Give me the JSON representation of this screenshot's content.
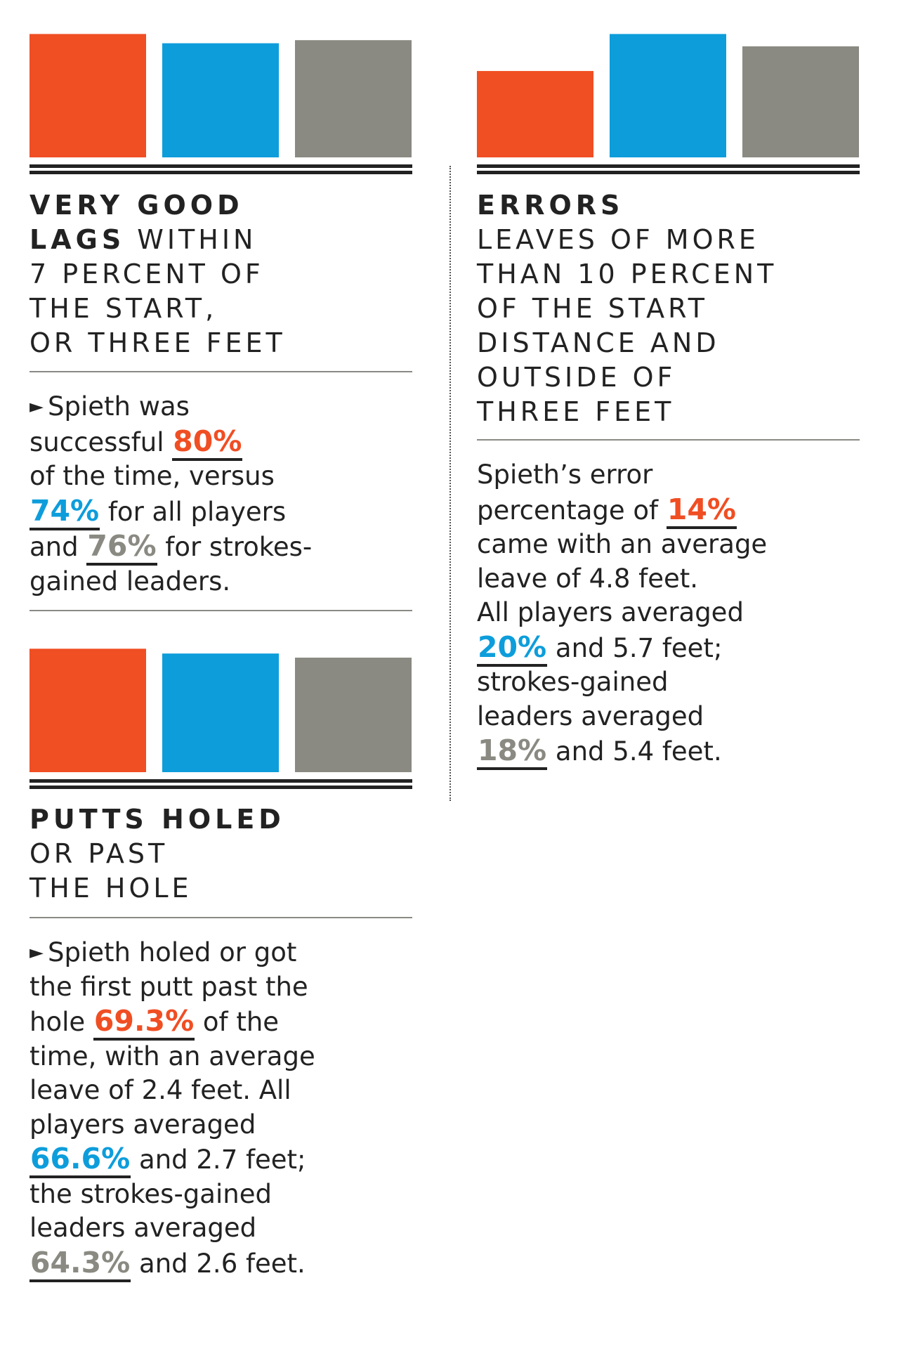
{
  "colors": {
    "spieth": "#f04e23",
    "all_players": "#0d9ddb",
    "sg_leaders": "#8a8a82",
    "ink": "#222222"
  },
  "chart_data": [
    {
      "type": "bar",
      "categories": [
        "Spieth",
        "All players",
        "Strokes-gained leaders"
      ],
      "values": [
        80,
        74,
        76
      ],
      "ylim": [
        0,
        82
      ],
      "heading_bold": [
        "VERY GOOD",
        "LAGS"
      ],
      "heading_rest": "WITHIN",
      "heading_lines": [
        "7 PERCENT OF",
        "THE START,",
        "OR THREE FEET"
      ],
      "body": {
        "marker": "►",
        "l1": "Spieth was",
        "l2a": "successful",
        "v1": "80%",
        "l3": "of the time, versus",
        "v2": "74%",
        "l4b": "for all players",
        "l5a": "and",
        "v3": "76%",
        "l5b": "for strokes-",
        "l6": "gained leaders."
      }
    },
    {
      "type": "bar",
      "categories": [
        "Spieth",
        "All players",
        "Strokes-gained leaders"
      ],
      "values": [
        69.3,
        66.6,
        64.3
      ],
      "ylim": [
        0,
        71
      ],
      "heading_bold": [
        "PUTTS HOLED"
      ],
      "heading_lines": [
        "OR PAST",
        "THE HOLE"
      ],
      "body": {
        "marker": "►",
        "l1": "Spieth holed or got",
        "l2": "the first putt past the",
        "l3a": "hole",
        "v1": "69.3%",
        "l3b": "of the",
        "l4": "time, with an average",
        "l5": "leave of 2.4 feet. All",
        "l6": "players averaged",
        "v2": "66.6%",
        "l7b": "and 2.7 feet;",
        "l8": "the strokes-gained",
        "l9": "leaders averaged",
        "v3": "64.3%",
        "l10b": "and 2.6 feet."
      }
    },
    {
      "type": "bar",
      "categories": [
        "Spieth",
        "All players",
        "Strokes-gained leaders"
      ],
      "values": [
        14,
        20,
        18
      ],
      "ylim": [
        0,
        20.5
      ],
      "heading_bold": [
        "ERRORS"
      ],
      "heading_lines": [
        "LEAVES OF MORE",
        "THAN 10 PERCENT",
        "OF THE START",
        "DISTANCE AND",
        "OUTSIDE OF",
        "THREE FEET"
      ],
      "body": {
        "l1": "Spieth’s error",
        "l2a": "percentage of",
        "v1": "14%",
        "l3": "came with an average",
        "l4": "leave of 4.8 feet.",
        "l5": "All players averaged",
        "v2": "20%",
        "l6b": "and 5.7 feet;",
        "l7": "strokes-gained",
        "l8": "leaders averaged",
        "v3": "18%",
        "l9b": "and 5.4 feet."
      }
    }
  ]
}
